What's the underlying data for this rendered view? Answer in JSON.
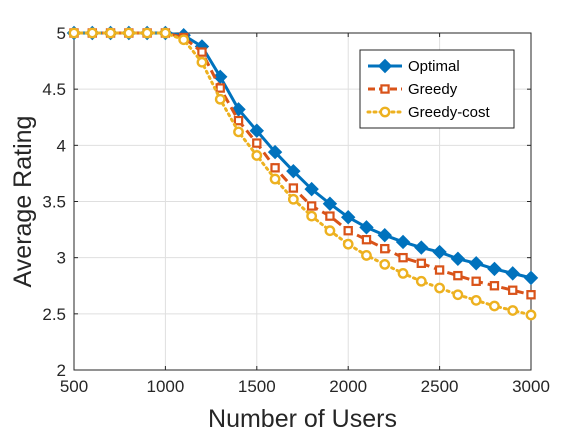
{
  "chart_data": {
    "type": "line",
    "xlabel": "Number of Users",
    "ylabel": "Average Rating",
    "xlim": [
      500,
      3000
    ],
    "ylim": [
      2,
      5
    ],
    "xticks": [
      "500",
      "1000",
      "1500",
      "2000",
      "2500",
      "3000"
    ],
    "yticks": [
      "2",
      "2.5",
      "3",
      "3.5",
      "4",
      "4.5",
      "5"
    ],
    "grid": true,
    "legend_position": "top-right",
    "x": [
      500,
      600,
      700,
      800,
      900,
      1000,
      1100,
      1200,
      1300,
      1400,
      1500,
      1600,
      1700,
      1800,
      1900,
      2000,
      2100,
      2200,
      2300,
      2400,
      2500,
      2600,
      2700,
      2800,
      2900,
      3000
    ],
    "series": [
      {
        "name": "Optimal",
        "color": "#0072bd",
        "marker": "diamond",
        "line": "solid",
        "values": [
          5.0,
          5.0,
          5.0,
          5.0,
          5.0,
          5.0,
          4.98,
          4.88,
          4.61,
          4.32,
          4.13,
          3.94,
          3.77,
          3.61,
          3.48,
          3.36,
          3.27,
          3.2,
          3.14,
          3.09,
          3.05,
          2.99,
          2.95,
          2.9,
          2.86,
          2.82
        ]
      },
      {
        "name": "Greedy",
        "color": "#d95319",
        "marker": "square",
        "line": "dashed",
        "values": [
          5.0,
          5.0,
          5.0,
          5.0,
          5.0,
          5.0,
          4.96,
          4.83,
          4.51,
          4.22,
          4.02,
          3.8,
          3.62,
          3.46,
          3.37,
          3.24,
          3.16,
          3.08,
          3.0,
          2.95,
          2.89,
          2.84,
          2.79,
          2.75,
          2.71,
          2.67
        ]
      },
      {
        "name": "Greedy-cost",
        "color": "#edb120",
        "marker": "circle",
        "line": "dotted",
        "values": [
          5.0,
          5.0,
          5.0,
          5.0,
          5.0,
          5.0,
          4.94,
          4.74,
          4.41,
          4.12,
          3.91,
          3.7,
          3.52,
          3.37,
          3.24,
          3.12,
          3.02,
          2.94,
          2.86,
          2.79,
          2.73,
          2.67,
          2.62,
          2.57,
          2.53,
          2.49
        ]
      }
    ]
  }
}
